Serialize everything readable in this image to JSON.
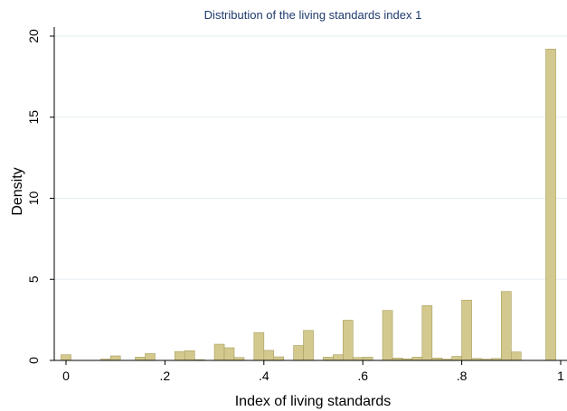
{
  "chart_data": {
    "type": "bar",
    "title": "Distribution of the living standards index 1",
    "xlabel": "Index of living standards",
    "ylabel": "Density",
    "xlim": [
      0,
      1
    ],
    "ylim": [
      0,
      20
    ],
    "x_ticks": [
      {
        "value": 0,
        "label": "0"
      },
      {
        "value": 0.2,
        "label": ".2"
      },
      {
        "value": 0.4,
        "label": ".4"
      },
      {
        "value": 0.6,
        "label": ".6"
      },
      {
        "value": 0.8,
        "label": ".8"
      },
      {
        "value": 1,
        "label": "1"
      }
    ],
    "y_ticks": [
      {
        "value": 0,
        "label": "0"
      },
      {
        "value": 5,
        "label": "5"
      },
      {
        "value": 10,
        "label": "10"
      },
      {
        "value": 15,
        "label": "15"
      },
      {
        "value": 20,
        "label": "20"
      }
    ],
    "grid": true,
    "bar_color": "#d3c98e",
    "bins": [
      {
        "x": 0.0,
        "y": 0.35
      },
      {
        "x": 0.08,
        "y": 0.08
      },
      {
        "x": 0.1,
        "y": 0.28
      },
      {
        "x": 0.15,
        "y": 0.2
      },
      {
        "x": 0.17,
        "y": 0.42
      },
      {
        "x": 0.23,
        "y": 0.55
      },
      {
        "x": 0.25,
        "y": 0.6
      },
      {
        "x": 0.27,
        "y": 0.05
      },
      {
        "x": 0.31,
        "y": 1.0
      },
      {
        "x": 0.33,
        "y": 0.78
      },
      {
        "x": 0.35,
        "y": 0.18
      },
      {
        "x": 0.39,
        "y": 1.72
      },
      {
        "x": 0.41,
        "y": 0.62
      },
      {
        "x": 0.43,
        "y": 0.22
      },
      {
        "x": 0.47,
        "y": 0.92
      },
      {
        "x": 0.49,
        "y": 1.85
      },
      {
        "x": 0.53,
        "y": 0.2
      },
      {
        "x": 0.55,
        "y": 0.35
      },
      {
        "x": 0.57,
        "y": 2.48
      },
      {
        "x": 0.59,
        "y": 0.18
      },
      {
        "x": 0.61,
        "y": 0.2
      },
      {
        "x": 0.65,
        "y": 3.08
      },
      {
        "x": 0.67,
        "y": 0.15
      },
      {
        "x": 0.69,
        "y": 0.1
      },
      {
        "x": 0.71,
        "y": 0.2
      },
      {
        "x": 0.73,
        "y": 3.38
      },
      {
        "x": 0.75,
        "y": 0.15
      },
      {
        "x": 0.77,
        "y": 0.08
      },
      {
        "x": 0.79,
        "y": 0.25
      },
      {
        "x": 0.81,
        "y": 3.72
      },
      {
        "x": 0.83,
        "y": 0.12
      },
      {
        "x": 0.85,
        "y": 0.08
      },
      {
        "x": 0.87,
        "y": 0.12
      },
      {
        "x": 0.89,
        "y": 4.25
      },
      {
        "x": 0.91,
        "y": 0.52
      },
      {
        "x": 0.98,
        "y": 19.2
      }
    ]
  }
}
